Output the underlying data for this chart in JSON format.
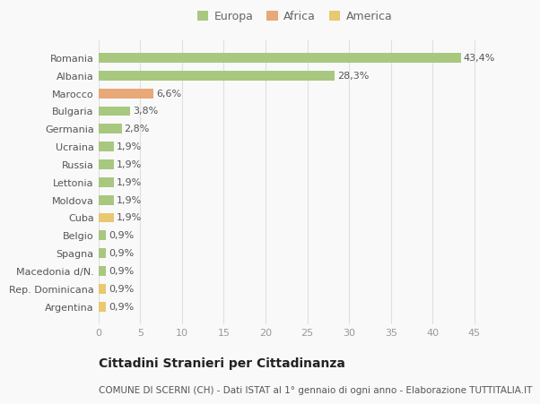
{
  "categories": [
    "Romania",
    "Albania",
    "Marocco",
    "Bulgaria",
    "Germania",
    "Ucraina",
    "Russia",
    "Lettonia",
    "Moldova",
    "Cuba",
    "Belgio",
    "Spagna",
    "Macedonia d/N.",
    "Rep. Dominicana",
    "Argentina"
  ],
  "values": [
    43.4,
    28.3,
    6.6,
    3.8,
    2.8,
    1.9,
    1.9,
    1.9,
    1.9,
    1.9,
    0.9,
    0.9,
    0.9,
    0.9,
    0.9
  ],
  "labels": [
    "43,4%",
    "28,3%",
    "6,6%",
    "3,8%",
    "2,8%",
    "1,9%",
    "1,9%",
    "1,9%",
    "1,9%",
    "1,9%",
    "0,9%",
    "0,9%",
    "0,9%",
    "0,9%",
    "0,9%"
  ],
  "colors": [
    "#a8c880",
    "#a8c880",
    "#e8a878",
    "#a8c880",
    "#a8c880",
    "#a8c880",
    "#a8c880",
    "#a8c880",
    "#a8c880",
    "#e8c870",
    "#a8c880",
    "#a8c880",
    "#a8c880",
    "#e8c870",
    "#e8c870"
  ],
  "legend": [
    {
      "label": "Europa",
      "color": "#a8c880"
    },
    {
      "label": "Africa",
      "color": "#e8a878"
    },
    {
      "label": "America",
      "color": "#e8c870"
    }
  ],
  "xlim": [
    0,
    47
  ],
  "xticks": [
    0,
    5,
    10,
    15,
    20,
    25,
    30,
    35,
    40,
    45
  ],
  "title": "Cittadini Stranieri per Cittadinanza",
  "subtitle": "COMUNE DI SCERNI (CH) - Dati ISTAT al 1° gennaio di ogni anno - Elaborazione TUTTITALIA.IT",
  "bg_color": "#f9f9f9",
  "grid_color": "#e0e0e0",
  "bar_height": 0.55,
  "label_fontsize": 8,
  "ytick_fontsize": 8,
  "xtick_fontsize": 8,
  "legend_fontsize": 9,
  "title_fontsize": 10,
  "subtitle_fontsize": 7.5
}
